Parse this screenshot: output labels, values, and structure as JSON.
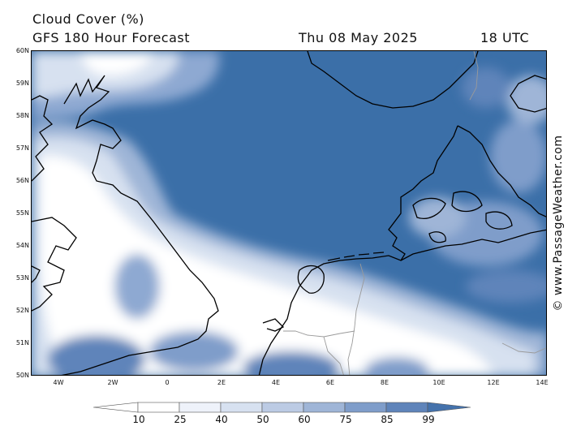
{
  "header": {
    "title": "Cloud Cover (%)",
    "subtitle": "GFS 180 Hour Forecast",
    "date": "Thu 08 May 2025",
    "time": "18 UTC"
  },
  "credit": "© www.PassageWeather.com",
  "map": {
    "lat_labels": [
      "60N",
      "59N",
      "58N",
      "57N",
      "56N",
      "55N",
      "54N",
      "53N",
      "52N",
      "51N",
      "50N"
    ],
    "lon_labels": [
      "4W",
      "2W",
      "0",
      "2E",
      "4E",
      "6E",
      "8E",
      "10E",
      "12E",
      "14E"
    ],
    "ocean_color": "#3b6fa8",
    "land_outline_color": "#000000",
    "border_color": "#9a9a9a"
  },
  "legend": {
    "ticks": [
      "10",
      "25",
      "40",
      "50",
      "60",
      "75",
      "85",
      "99"
    ],
    "colors": [
      "#ffffff",
      "#eef2fa",
      "#d7e1f0",
      "#bccbe4",
      "#9fb5d7",
      "#7f9dca",
      "#5f84ba",
      "#4472ac",
      "#3b6fa8"
    ]
  }
}
